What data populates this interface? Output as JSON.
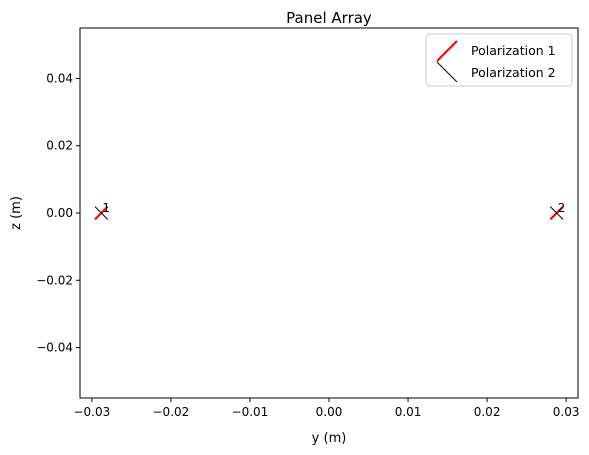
{
  "chart_data": {
    "type": "scatter",
    "title": "Panel Array",
    "xlabel": "y (m)",
    "ylabel": "z (m)",
    "xlim": [
      -0.0315,
      0.0315
    ],
    "ylim": [
      -0.055,
      0.055
    ],
    "x_ticks": [
      -0.03,
      -0.02,
      -0.01,
      0.0,
      0.01,
      0.02,
      0.03
    ],
    "x_tick_labels": [
      "−0.03",
      "−0.02",
      "−0.01",
      "0.00",
      "0.01",
      "0.02",
      "0.03"
    ],
    "y_ticks": [
      0.04,
      0.02,
      0.0,
      -0.02,
      -0.04
    ],
    "y_tick_labels": [
      "0.04",
      "0.02",
      "0.00",
      "−0.02",
      "−0.04"
    ],
    "grid": false,
    "legend_position": "top-right",
    "elements": [
      {
        "label": "1",
        "y": -0.0288,
        "z": 0.0
      },
      {
        "label": "2",
        "y": 0.0288,
        "z": 0.0
      }
    ],
    "series": [
      {
        "name": "Polarization 1",
        "color": "#ff0000",
        "angle_deg": 45
      },
      {
        "name": "Polarization 2",
        "color": "#000000",
        "angle_deg": -45
      }
    ]
  }
}
